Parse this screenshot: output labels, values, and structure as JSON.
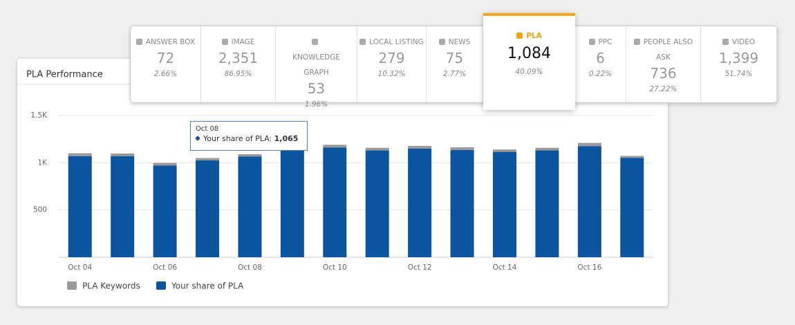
{
  "metrics": [
    {
      "label": "Answer Box",
      "value": "72",
      "percent": "2.66%"
    },
    {
      "label": "Image",
      "value": "2,351",
      "percent": "86.95%"
    },
    {
      "label": "Knowledge Graph",
      "value": "53",
      "percent": "1.96%"
    },
    {
      "label": "Local Listing",
      "value": "279",
      "percent": "10.32%"
    },
    {
      "label": "News",
      "value": "75",
      "percent": "2.77%"
    },
    {
      "label": "PLA",
      "value": "1,084",
      "percent": "40.09%"
    },
    {
      "label": "PPC",
      "value": "6",
      "percent": "0.22%"
    },
    {
      "label": "People Also Ask",
      "value": "736",
      "percent": "27.22%"
    },
    {
      "label": "Video",
      "value": "1,399",
      "percent": "51.74%"
    }
  ],
  "chart_data": {
    "type": "stacked_bar",
    "title": "PLA Performance",
    "categories": [
      "Oct 04",
      null,
      "Oct 06",
      null,
      "Oct 08",
      null,
      "Oct 10",
      null,
      "Oct 12",
      null,
      "Oct 14",
      null,
      "Oct 16",
      null
    ],
    "series": [
      {
        "name": "Your share of PLA",
        "color": "#0b54a0",
        "values": [
          1070,
          1068,
          970,
          1025,
          1065,
          1140,
          1160,
          1130,
          1150,
          1135,
          1115,
          1130,
          1175,
          1050
        ]
      },
      {
        "name": "PLA Keywords",
        "color": "#999999",
        "values": [
          30,
          30,
          28,
          25,
          25,
          25,
          30,
          28,
          28,
          28,
          25,
          28,
          35,
          22
        ]
      }
    ],
    "ylim": [
      0,
      1500
    ],
    "yticks": [
      {
        "value": 500,
        "label": "500"
      },
      {
        "value": 1000,
        "label": "1K"
      },
      {
        "value": 1500,
        "label": "1.5K"
      }
    ],
    "grid": true,
    "tooltip": {
      "title": "Oct 08",
      "label": "Your share of PLA:",
      "value_label": "1,065"
    }
  }
}
